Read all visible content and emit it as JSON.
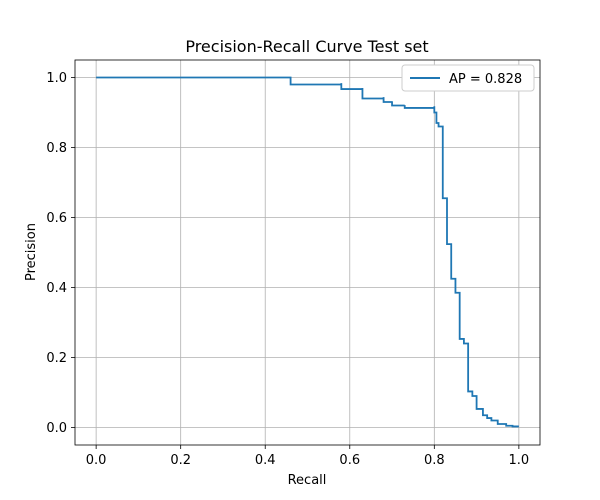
{
  "chart_data": {
    "type": "line",
    "title": "Precision-Recall Curve Test set",
    "xlabel": "Recall",
    "ylabel": "Precision",
    "xlim": [
      -0.05,
      1.05
    ],
    "ylim": [
      -0.05,
      1.05
    ],
    "xticks": [
      0.0,
      0.2,
      0.4,
      0.6,
      0.8,
      1.0
    ],
    "yticks": [
      0.0,
      0.2,
      0.4,
      0.6,
      0.8,
      1.0
    ],
    "xtick_labels": [
      "0.0",
      "0.2",
      "0.4",
      "0.6",
      "0.8",
      "1.0"
    ],
    "ytick_labels": [
      "0.0",
      "0.2",
      "0.4",
      "0.6",
      "0.8",
      "1.0"
    ],
    "grid": true,
    "legend_position": "top-right",
    "step": true,
    "series": [
      {
        "name": "AP = 0.828",
        "color": "#1f77b4",
        "x": [
          0.0,
          0.46,
          0.46,
          0.58,
          0.58,
          0.63,
          0.63,
          0.68,
          0.68,
          0.7,
          0.7,
          0.73,
          0.73,
          0.8,
          0.8,
          0.805,
          0.805,
          0.81,
          0.81,
          0.82,
          0.82,
          0.83,
          0.83,
          0.84,
          0.84,
          0.85,
          0.85,
          0.86,
          0.86,
          0.87,
          0.87,
          0.88,
          0.88,
          0.89,
          0.89,
          0.9,
          0.9,
          0.915,
          0.915,
          0.925,
          0.925,
          0.935,
          0.935,
          0.95,
          0.95,
          0.97,
          0.97,
          0.985,
          0.985,
          1.0
        ],
        "y": [
          1.0,
          1.0,
          0.98,
          0.984,
          0.967,
          0.97,
          0.94,
          0.944,
          0.93,
          0.932,
          0.92,
          0.921,
          0.913,
          0.918,
          0.9,
          0.9,
          0.87,
          0.86,
          0.86,
          0.86,
          0.655,
          0.655,
          0.524,
          0.524,
          0.425,
          0.425,
          0.385,
          0.385,
          0.253,
          0.253,
          0.24,
          0.24,
          0.103,
          0.097,
          0.09,
          0.088,
          0.053,
          0.05,
          0.035,
          0.035,
          0.027,
          0.027,
          0.02,
          0.02,
          0.01,
          0.01,
          0.005,
          0.005,
          0.003,
          0.003
        ]
      }
    ]
  }
}
